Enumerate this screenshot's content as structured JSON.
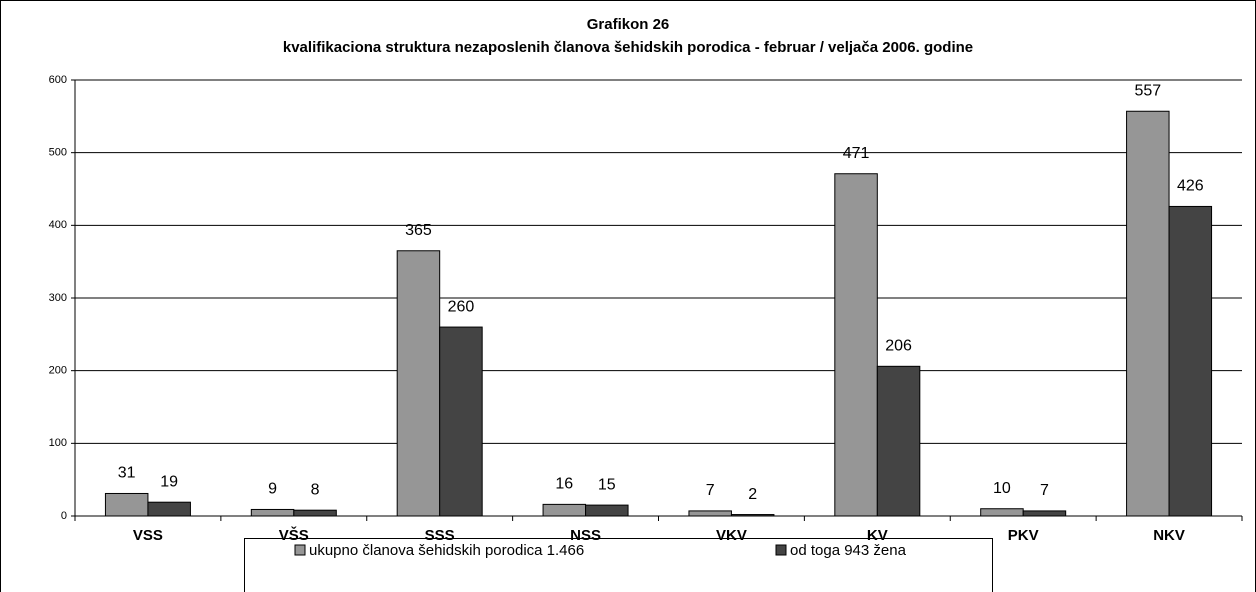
{
  "chart_data": {
    "type": "bar",
    "title": "Grafikon 26",
    "subtitle": "kvalifikaciona struktura nezaposlenih članova šehidskih porodica - februar / veljača 2006. godine",
    "categories": [
      "VSS",
      "VŠS",
      "SSS",
      "NSS",
      "VKV",
      "KV",
      "PKV",
      "NKV"
    ],
    "series": [
      {
        "name": "ukupno članova šehidskih porodica 1.466",
        "color": "#969696",
        "values": [
          31,
          9,
          365,
          16,
          7,
          471,
          10,
          557
        ]
      },
      {
        "name": "od toga 943 žena",
        "color": "#444444",
        "values": [
          19,
          8,
          260,
          15,
          2,
          206,
          7,
          426
        ]
      }
    ],
    "ylim": [
      0,
      600
    ],
    "yticks": [
      0,
      100,
      200,
      300,
      400,
      500,
      600
    ],
    "grid": true,
    "legend": "bottom"
  }
}
